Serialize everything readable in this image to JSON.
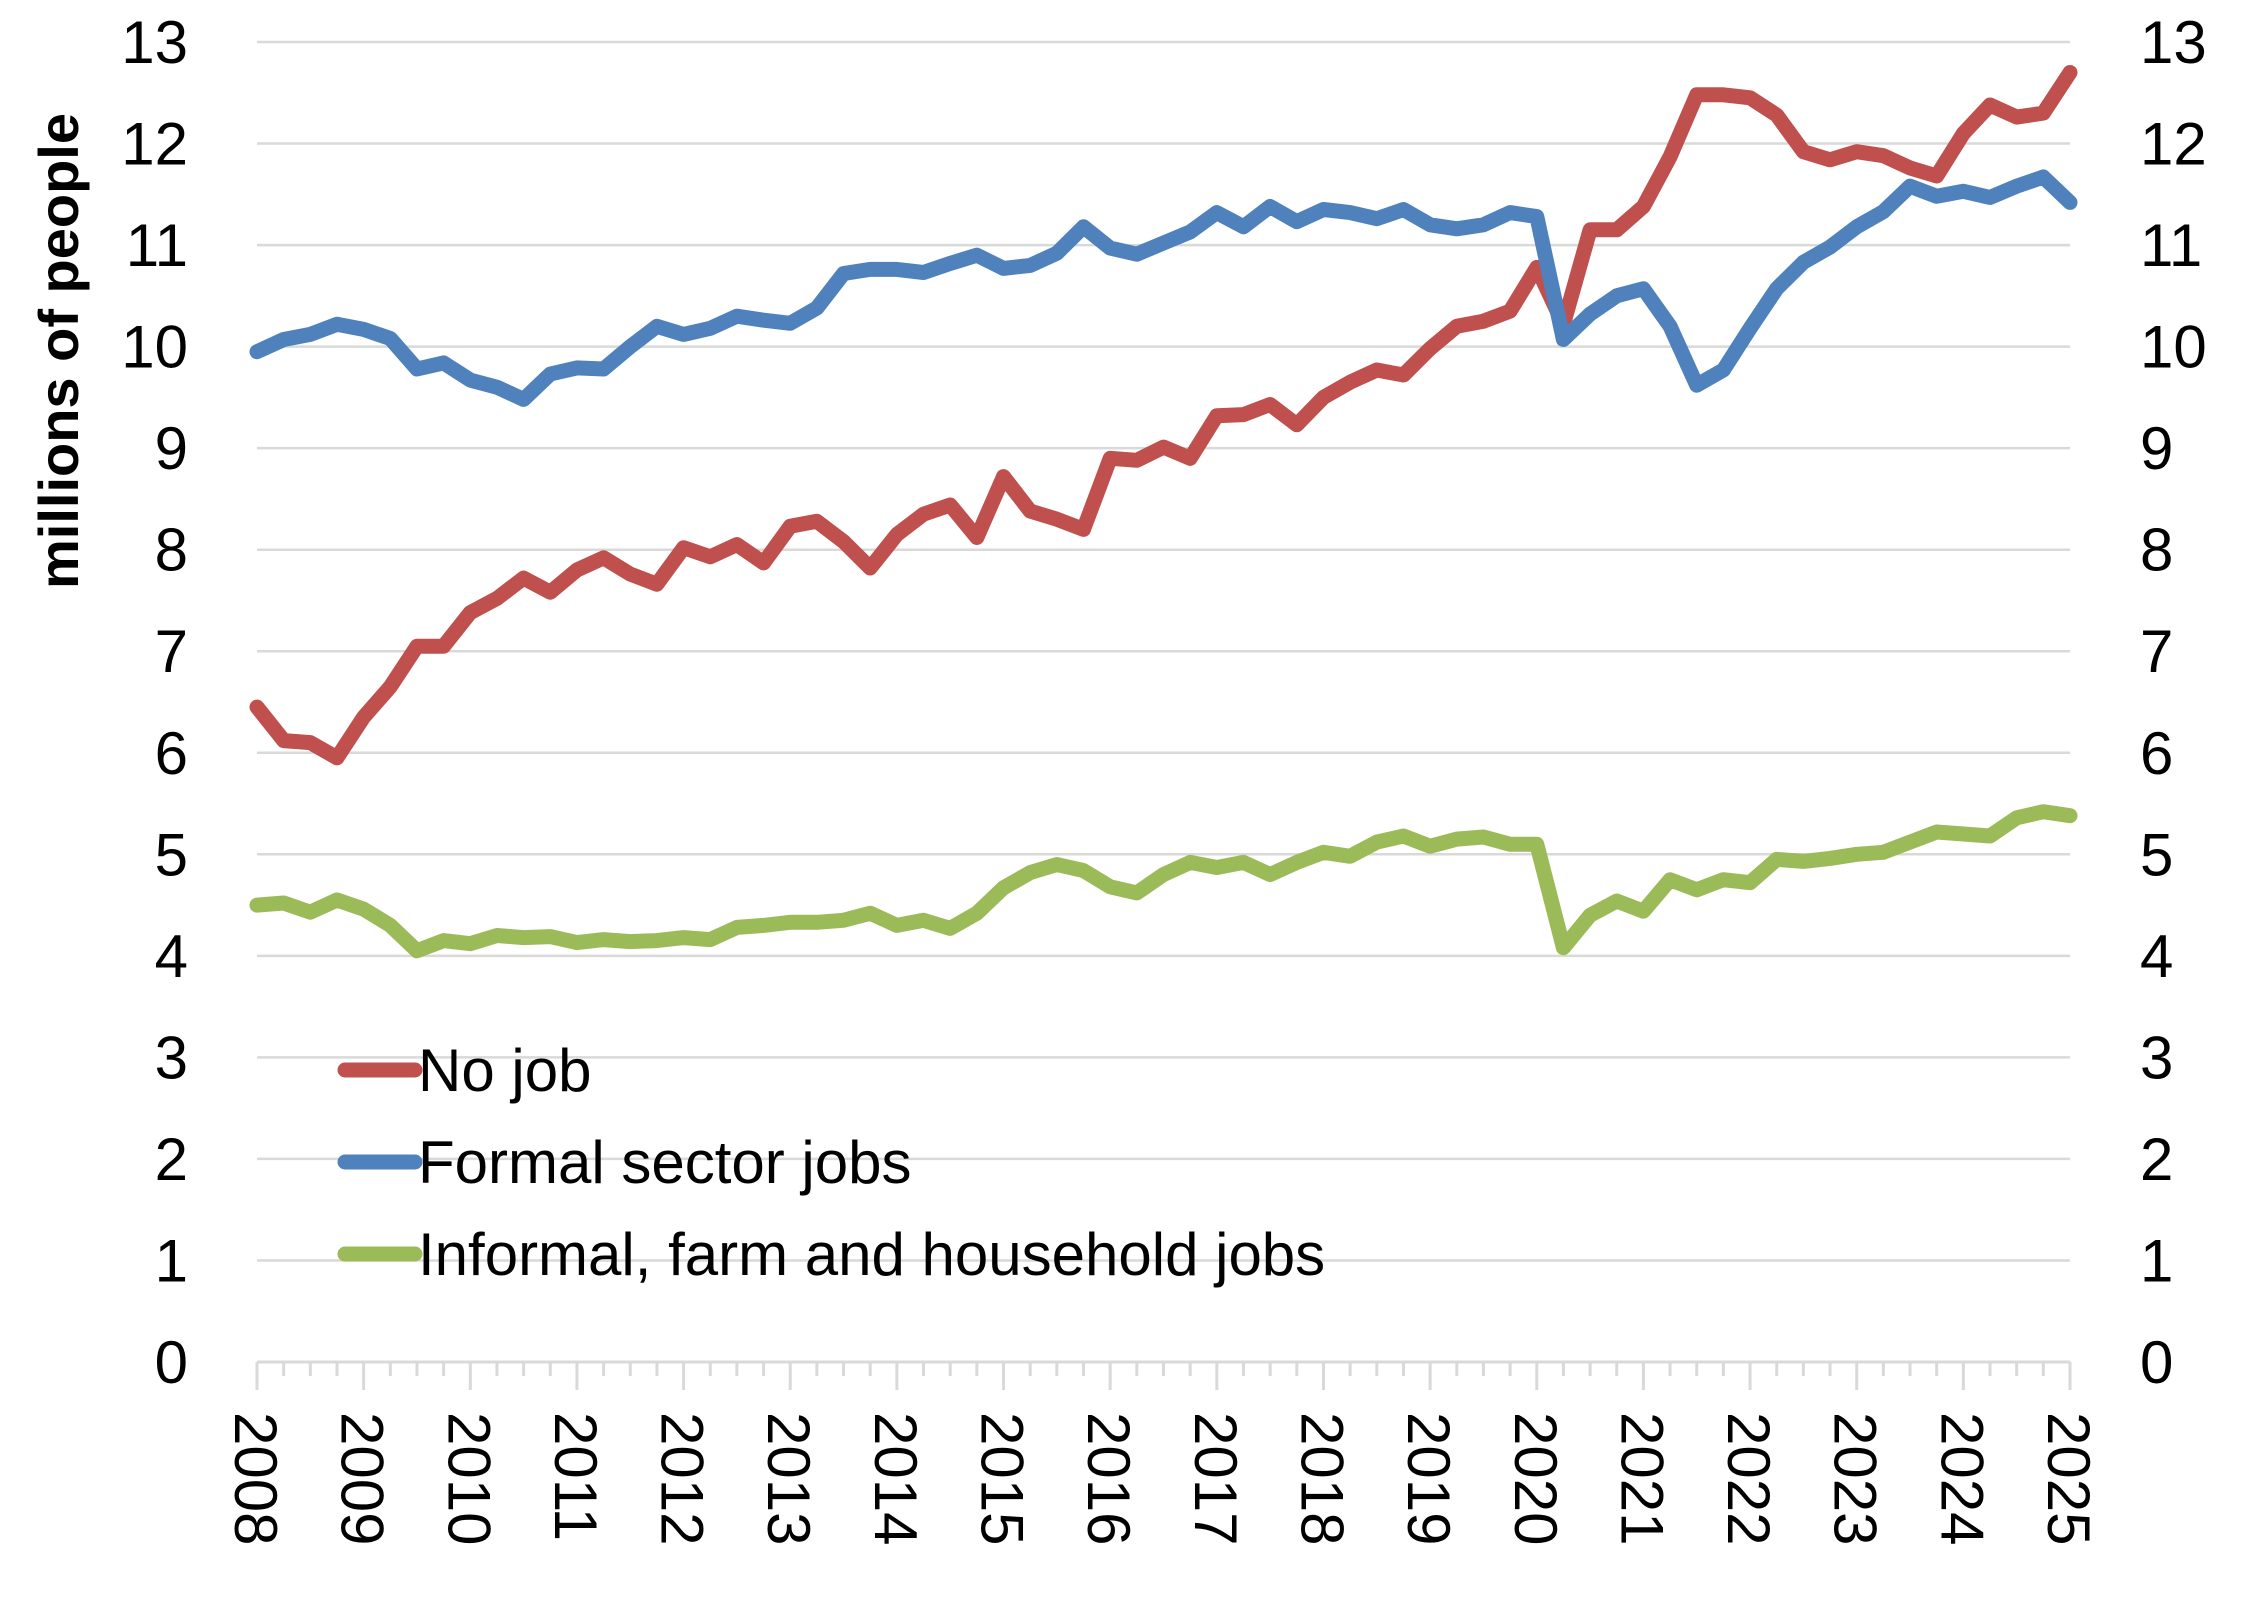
{
  "chart_data": {
    "type": "line",
    "ylabel": "millions of people",
    "xlabel": "",
    "ylim": [
      0,
      13
    ],
    "yticks": [
      "0",
      "1",
      "2",
      "3",
      "4",
      "5",
      "6",
      "7",
      "8",
      "9",
      "10",
      "11",
      "12",
      "13"
    ],
    "xticks": [
      "2008",
      "2009",
      "2010",
      "2011",
      "2012",
      "2013",
      "2014",
      "2015",
      "2016",
      "2017",
      "2018",
      "2019",
      "2020",
      "2021",
      "2022",
      "2023",
      "2024",
      "2025"
    ],
    "x_start_label": "2008",
    "x_step_label": "quarterly",
    "grid": true,
    "legend_position": "bottom-left",
    "right_axis_mirrors_left": true,
    "series": [
      {
        "name": "No job",
        "color": "#c0504d",
        "values": [
          6.45,
          6.12,
          6.1,
          5.95,
          6.35,
          6.65,
          7.05,
          7.05,
          7.38,
          7.52,
          7.72,
          7.58,
          7.8,
          7.92,
          7.76,
          7.66,
          8.02,
          7.93,
          8.05,
          7.87,
          8.23,
          8.28,
          8.08,
          7.82,
          8.15,
          8.35,
          8.44,
          8.12,
          8.72,
          8.38,
          8.3,
          8.2,
          8.9,
          8.88,
          9.01,
          8.9,
          9.32,
          9.33,
          9.43,
          9.23,
          9.5,
          9.65,
          9.77,
          9.72,
          9.98,
          10.2,
          10.25,
          10.35,
          10.78,
          10.22,
          11.15,
          11.15,
          11.38,
          11.87,
          12.48,
          12.48,
          12.45,
          12.28,
          11.92,
          11.84,
          11.92,
          11.88,
          11.76,
          11.68,
          12.1,
          12.38,
          12.26,
          12.3,
          12.7
        ]
      },
      {
        "name": "Formal sector jobs",
        "color": "#4f81bd",
        "values": [
          9.95,
          10.07,
          10.12,
          10.22,
          10.17,
          10.08,
          9.78,
          9.84,
          9.67,
          9.6,
          9.48,
          9.73,
          9.79,
          9.78,
          10.0,
          10.2,
          10.12,
          10.18,
          10.3,
          10.26,
          10.23,
          10.38,
          10.72,
          10.76,
          10.76,
          10.73,
          10.82,
          10.9,
          10.77,
          10.8,
          10.92,
          11.18,
          10.97,
          10.91,
          11.02,
          11.13,
          11.32,
          11.18,
          11.38,
          11.23,
          11.35,
          11.32,
          11.26,
          11.35,
          11.2,
          11.16,
          11.2,
          11.32,
          11.28,
          10.07,
          10.32,
          10.5,
          10.57,
          10.2,
          9.62,
          9.77,
          10.18,
          10.57,
          10.83,
          10.98,
          11.18,
          11.33,
          11.58,
          11.48,
          11.53,
          11.47,
          11.58,
          11.67,
          11.42
        ]
      },
      {
        "name": "Informal, farm and household jobs",
        "color": "#9bbb59",
        "values": [
          4.5,
          4.52,
          4.43,
          4.55,
          4.46,
          4.3,
          4.05,
          4.15,
          4.12,
          4.2,
          4.18,
          4.19,
          4.13,
          4.16,
          4.14,
          4.15,
          4.18,
          4.16,
          4.28,
          4.3,
          4.33,
          4.33,
          4.35,
          4.42,
          4.3,
          4.35,
          4.27,
          4.42,
          4.67,
          4.82,
          4.9,
          4.84,
          4.68,
          4.62,
          4.8,
          4.92,
          4.87,
          4.92,
          4.8,
          4.92,
          5.02,
          4.98,
          5.12,
          5.18,
          5.08,
          5.15,
          5.17,
          5.1,
          5.1,
          4.08,
          4.4,
          4.54,
          4.44,
          4.75,
          4.65,
          4.75,
          4.72,
          4.95,
          4.93,
          4.96,
          5.0,
          5.02,
          5.12,
          5.22,
          5.2,
          5.18,
          5.36,
          5.42,
          5.38
        ]
      }
    ]
  }
}
